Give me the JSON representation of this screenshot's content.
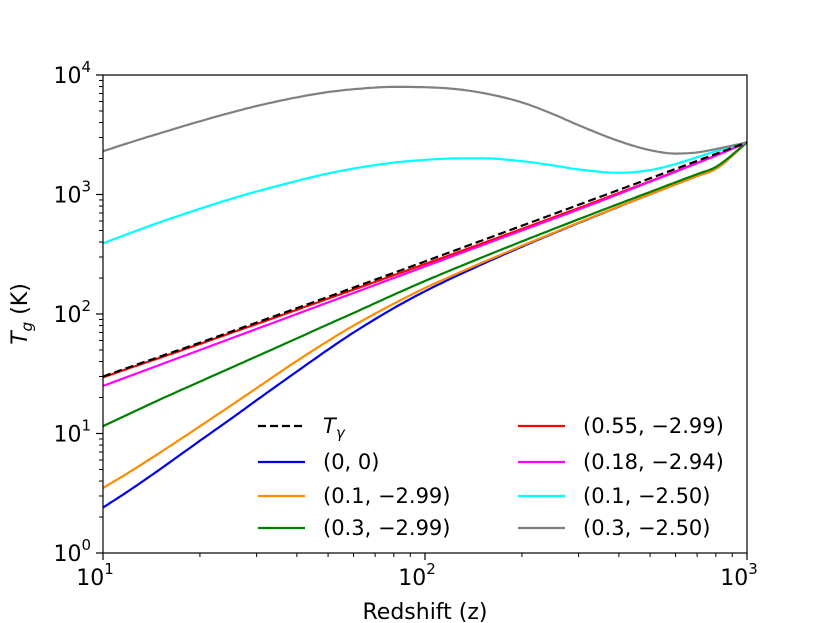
{
  "chart_data": {
    "type": "line",
    "xscale": "log",
    "yscale": "log",
    "xlabel": "Redshift (z)",
    "ylabel": "T_g (K)",
    "ylabel_parts": {
      "main": "T",
      "sub": "g",
      "unit": " (K)"
    },
    "xlim": [
      10,
      1000
    ],
    "ylim": [
      1,
      10000
    ],
    "x_ticks": [
      {
        "value": 10,
        "base": "10",
        "exp": "1"
      },
      {
        "value": 100,
        "base": "10",
        "exp": "2"
      },
      {
        "value": 1000,
        "base": "10",
        "exp": "3"
      }
    ],
    "y_ticks": [
      {
        "value": 1,
        "base": "10",
        "exp": "0"
      },
      {
        "value": 10,
        "base": "10",
        "exp": "1"
      },
      {
        "value": 100,
        "base": "10",
        "exp": "2"
      },
      {
        "value": 1000,
        "base": "10",
        "exp": "3"
      },
      {
        "value": 10000,
        "base": "10",
        "exp": "4"
      }
    ],
    "x": [
      10,
      12,
      15,
      20,
      25,
      30,
      40,
      50,
      60,
      80,
      100,
      120,
      150,
      200,
      250,
      300,
      400,
      500,
      600,
      700,
      800,
      1000
    ],
    "series": [
      {
        "name": "T_γ",
        "legend_main": "T",
        "legend_sub": "γ",
        "color": "#000000",
        "dashed": true,
        "values": [
          30.0,
          35.7,
          43.9,
          57.5,
          71.2,
          84.8,
          112.0,
          139.2,
          166.5,
          220.9,
          275.5,
          329.9,
          411.6,
          547.8,
          684.0,
          820.2,
          1092.7,
          1365.2,
          1637.7,
          1910.1,
          2182.6,
          2727.5
        ]
      },
      {
        "name": "(0, 0)",
        "color": "#0000ee",
        "dashed": false,
        "values": [
          2.4,
          3.3,
          5.0,
          8.7,
          13.3,
          19.0,
          33.0,
          50.4,
          70.0,
          112.0,
          155.0,
          197.0,
          260.0,
          366.0,
          472.0,
          578.0,
          791.0,
          1003.0,
          1215.0,
          1427.0,
          1640.0,
          2727.5
        ]
      },
      {
        "name": "(0.1, −2.99)",
        "color": "#ff8c00",
        "dashed": false,
        "values": [
          3.5,
          4.7,
          6.9,
          11.5,
          17.2,
          24.0,
          40.5,
          59.5,
          80.0,
          122.0,
          165.0,
          206.0,
          268.0,
          372.0,
          476.0,
          582.0,
          793.0,
          1004.0,
          1216.0,
          1428.0,
          1640.0,
          2727.5
        ]
      },
      {
        "name": "(0.3, −2.99)",
        "color": "#008000",
        "dashed": false,
        "values": [
          11.5,
          14.5,
          19.2,
          27.2,
          35.5,
          44.2,
          62.5,
          82.0,
          102.0,
          145.0,
          189.0,
          232.0,
          297.0,
          405.0,
          513.0,
          621.0,
          836.0,
          1050.0,
          1265.0,
          1480.0,
          1700.0,
          2727.5
        ]
      },
      {
        "name": "(0.55, −2.99)",
        "color": "#ff0000",
        "dashed": false,
        "values": [
          29.5,
          35.0,
          43.0,
          56.2,
          69.5,
          82.5,
          108.5,
          134.5,
          160.0,
          211.0,
          262.0,
          312.0,
          388.0,
          515.0,
          642.0,
          770.0,
          1030.0,
          1290.0,
          1560.0,
          1840.0,
          2120.0,
          2727.5
        ]
      },
      {
        "name": "(0.18, −2.94)",
        "color": "#ff00ff",
        "dashed": false,
        "values": [
          25.0,
          30.0,
          37.5,
          50.0,
          62.5,
          75.0,
          100.0,
          125.0,
          150.0,
          200.0,
          250.0,
          300.0,
          375.0,
          500.0,
          625.0,
          750.0,
          1010.0,
          1280.0,
          1550.0,
          1830.0,
          2110.0,
          2727.5
        ]
      },
      {
        "name": "(0.1, −2.50)",
        "color": "#00ffff",
        "dashed": false,
        "values": [
          390,
          470,
          585,
          760,
          920,
          1060,
          1300,
          1500,
          1650,
          1850,
          1950,
          2000,
          2010,
          1900,
          1750,
          1620,
          1520,
          1600,
          1800,
          2050,
          2300,
          2727.5
        ]
      },
      {
        "name": "(0.3, −2.50)",
        "color": "#808080",
        "dashed": false,
        "values": [
          2300,
          2700,
          3250,
          4100,
          4850,
          5500,
          6500,
          7200,
          7600,
          7950,
          7900,
          7700,
          7100,
          5900,
          4700,
          3800,
          2800,
          2350,
          2200,
          2250,
          2400,
          2727.5
        ]
      }
    ]
  }
}
